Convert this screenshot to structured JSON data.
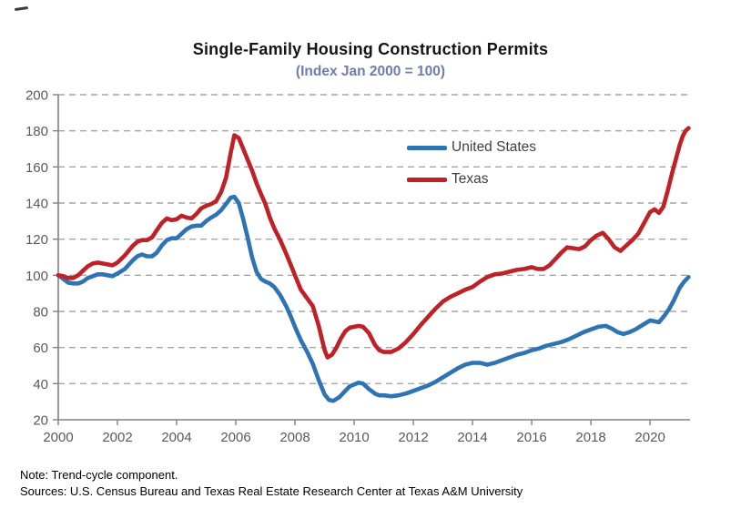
{
  "notes": {
    "note": "Note: Trend-cycle component.",
    "sources": "Sources: U.S. Census Bureau and Texas Real Estate Research Center at Texas A&M University"
  },
  "chart_data": {
    "type": "line",
    "title": "Single-Family Housing Construction Permits",
    "subtitle": "(Index Jan 2000 = 100)",
    "xlabel": "",
    "ylabel": "",
    "xlim": [
      2000,
      2021.35
    ],
    "ylim": [
      20,
      200
    ],
    "xticks": [
      2000,
      2002,
      2004,
      2006,
      2008,
      2010,
      2012,
      2014,
      2016,
      2018,
      2020
    ],
    "yticks": [
      20,
      40,
      60,
      80,
      100,
      120,
      140,
      160,
      180,
      200
    ],
    "grid": "dashed-horizontal",
    "legend_position": "inside-upper-middle",
    "colors": {
      "axis": "#808080",
      "grid": "#a6a6a6",
      "tick_label": "#595959",
      "subtitle": "#6e7cb0",
      "title": "#141414"
    },
    "series": [
      {
        "name": "United States",
        "color": "#2e74b5",
        "points": [
          [
            2000.0,
            100
          ],
          [
            2000.17,
            98
          ],
          [
            2000.33,
            96
          ],
          [
            2000.5,
            95.5
          ],
          [
            2000.67,
            95.5
          ],
          [
            2000.83,
            96.5
          ],
          [
            2001.0,
            98.5
          ],
          [
            2001.17,
            99.5
          ],
          [
            2001.33,
            100.5
          ],
          [
            2001.5,
            100.5
          ],
          [
            2001.67,
            100
          ],
          [
            2001.83,
            99.5
          ],
          [
            2002.0,
            101
          ],
          [
            2002.25,
            103.5
          ],
          [
            2002.5,
            108
          ],
          [
            2002.67,
            110.5
          ],
          [
            2002.83,
            111.5
          ],
          [
            2003.0,
            110.5
          ],
          [
            2003.17,
            110.5
          ],
          [
            2003.33,
            112.5
          ],
          [
            2003.5,
            116.5
          ],
          [
            2003.67,
            119.5
          ],
          [
            2003.83,
            120.5
          ],
          [
            2004.0,
            120.5
          ],
          [
            2004.17,
            123
          ],
          [
            2004.33,
            125.5
          ],
          [
            2004.5,
            127
          ],
          [
            2004.67,
            127.5
          ],
          [
            2004.83,
            127.5
          ],
          [
            2005.0,
            130
          ],
          [
            2005.17,
            132
          ],
          [
            2005.33,
            133.5
          ],
          [
            2005.5,
            136
          ],
          [
            2005.67,
            139.5
          ],
          [
            2005.83,
            143
          ],
          [
            2005.95,
            143.5
          ],
          [
            2006.1,
            140
          ],
          [
            2006.25,
            131
          ],
          [
            2006.4,
            121
          ],
          [
            2006.55,
            110
          ],
          [
            2006.7,
            102
          ],
          [
            2006.85,
            98
          ],
          [
            2007.0,
            96.5
          ],
          [
            2007.15,
            95.5
          ],
          [
            2007.3,
            93.5
          ],
          [
            2007.5,
            89
          ],
          [
            2007.7,
            83
          ],
          [
            2007.85,
            77.5
          ],
          [
            2008.0,
            71.5
          ],
          [
            2008.2,
            64
          ],
          [
            2008.4,
            58
          ],
          [
            2008.6,
            51
          ],
          [
            2008.8,
            42
          ],
          [
            2009.0,
            34
          ],
          [
            2009.15,
            31
          ],
          [
            2009.3,
            30.5
          ],
          [
            2009.5,
            32.5
          ],
          [
            2009.7,
            36
          ],
          [
            2009.85,
            38.5
          ],
          [
            2010.0,
            39.5
          ],
          [
            2010.15,
            40.5
          ],
          [
            2010.3,
            40
          ],
          [
            2010.5,
            37
          ],
          [
            2010.7,
            34.5
          ],
          [
            2010.85,
            33.5
          ],
          [
            2011.0,
            33.5
          ],
          [
            2011.25,
            33
          ],
          [
            2011.5,
            33.5
          ],
          [
            2011.75,
            34.5
          ],
          [
            2012.0,
            36
          ],
          [
            2012.25,
            37.5
          ],
          [
            2012.5,
            39
          ],
          [
            2012.75,
            41
          ],
          [
            2013.0,
            43.5
          ],
          [
            2013.25,
            46
          ],
          [
            2013.5,
            48.5
          ],
          [
            2013.75,
            50.5
          ],
          [
            2014.0,
            51.5
          ],
          [
            2014.25,
            51.5
          ],
          [
            2014.5,
            50.5
          ],
          [
            2014.75,
            51.5
          ],
          [
            2015.0,
            53
          ],
          [
            2015.25,
            54.5
          ],
          [
            2015.5,
            56
          ],
          [
            2015.75,
            57
          ],
          [
            2016.0,
            58.5
          ],
          [
            2016.25,
            59.5
          ],
          [
            2016.5,
            61
          ],
          [
            2016.75,
            62
          ],
          [
            2017.0,
            63
          ],
          [
            2017.25,
            64.5
          ],
          [
            2017.5,
            66.5
          ],
          [
            2017.75,
            68.5
          ],
          [
            2018.0,
            70
          ],
          [
            2018.25,
            71.5
          ],
          [
            2018.5,
            72
          ],
          [
            2018.7,
            70.5
          ],
          [
            2018.9,
            68.5
          ],
          [
            2019.1,
            67.5
          ],
          [
            2019.3,
            68.5
          ],
          [
            2019.5,
            70
          ],
          [
            2019.75,
            72.5
          ],
          [
            2020.0,
            75
          ],
          [
            2020.15,
            74.5
          ],
          [
            2020.3,
            74
          ],
          [
            2020.5,
            78
          ],
          [
            2020.65,
            81.5
          ],
          [
            2020.8,
            86
          ],
          [
            2021.0,
            93
          ],
          [
            2021.15,
            96.5
          ],
          [
            2021.3,
            99
          ]
        ]
      },
      {
        "name": "Texas",
        "color": "#be2126",
        "points": [
          [
            2000.0,
            100
          ],
          [
            2000.17,
            99.5
          ],
          [
            2000.33,
            98.5
          ],
          [
            2000.5,
            98.5
          ],
          [
            2000.67,
            100
          ],
          [
            2000.83,
            102.5
          ],
          [
            2001.0,
            105
          ],
          [
            2001.17,
            106.5
          ],
          [
            2001.33,
            107
          ],
          [
            2001.5,
            106.5
          ],
          [
            2001.67,
            106
          ],
          [
            2001.83,
            105.5
          ],
          [
            2002.0,
            107
          ],
          [
            2002.25,
            111
          ],
          [
            2002.5,
            116
          ],
          [
            2002.67,
            118.5
          ],
          [
            2002.83,
            119.5
          ],
          [
            2003.0,
            119.5
          ],
          [
            2003.17,
            121
          ],
          [
            2003.33,
            125
          ],
          [
            2003.5,
            129
          ],
          [
            2003.67,
            131.5
          ],
          [
            2003.83,
            130.5
          ],
          [
            2004.0,
            131
          ],
          [
            2004.17,
            133
          ],
          [
            2004.33,
            132
          ],
          [
            2004.5,
            131.5
          ],
          [
            2004.67,
            134
          ],
          [
            2004.83,
            137
          ],
          [
            2005.0,
            138.5
          ],
          [
            2005.17,
            139.5
          ],
          [
            2005.33,
            141
          ],
          [
            2005.5,
            146
          ],
          [
            2005.67,
            154
          ],
          [
            2005.83,
            168
          ],
          [
            2005.95,
            177.5
          ],
          [
            2006.1,
            176
          ],
          [
            2006.25,
            170
          ],
          [
            2006.4,
            164
          ],
          [
            2006.55,
            158
          ],
          [
            2006.7,
            151
          ],
          [
            2006.85,
            145
          ],
          [
            2007.0,
            139.5
          ],
          [
            2007.15,
            132
          ],
          [
            2007.3,
            126
          ],
          [
            2007.5,
            119.5
          ],
          [
            2007.7,
            112
          ],
          [
            2007.85,
            106
          ],
          [
            2008.0,
            100
          ],
          [
            2008.2,
            92
          ],
          [
            2008.4,
            87.5
          ],
          [
            2008.6,
            83
          ],
          [
            2008.8,
            72
          ],
          [
            2009.0,
            58.5
          ],
          [
            2009.1,
            54.5
          ],
          [
            2009.25,
            56
          ],
          [
            2009.4,
            60
          ],
          [
            2009.55,
            65
          ],
          [
            2009.7,
            69
          ],
          [
            2009.85,
            71
          ],
          [
            2010.0,
            71.5
          ],
          [
            2010.15,
            72
          ],
          [
            2010.3,
            71.5
          ],
          [
            2010.5,
            68
          ],
          [
            2010.7,
            61.5
          ],
          [
            2010.85,
            58.5
          ],
          [
            2011.0,
            57.5
          ],
          [
            2011.25,
            57.5
          ],
          [
            2011.5,
            59.5
          ],
          [
            2011.75,
            63
          ],
          [
            2012.0,
            67.5
          ],
          [
            2012.25,
            72.5
          ],
          [
            2012.5,
            77
          ],
          [
            2012.75,
            81.5
          ],
          [
            2013.0,
            85.5
          ],
          [
            2013.25,
            88
          ],
          [
            2013.5,
            90
          ],
          [
            2013.75,
            92
          ],
          [
            2014.0,
            93.5
          ],
          [
            2014.25,
            96.5
          ],
          [
            2014.5,
            99
          ],
          [
            2014.75,
            100.5
          ],
          [
            2015.0,
            101
          ],
          [
            2015.25,
            102
          ],
          [
            2015.5,
            103
          ],
          [
            2015.75,
            103.5
          ],
          [
            2016.0,
            104.5
          ],
          [
            2016.2,
            103.5
          ],
          [
            2016.4,
            103.5
          ],
          [
            2016.6,
            105.5
          ],
          [
            2016.8,
            109
          ],
          [
            2017.0,
            112.5
          ],
          [
            2017.2,
            115.5
          ],
          [
            2017.4,
            115
          ],
          [
            2017.6,
            114.5
          ],
          [
            2017.8,
            116
          ],
          [
            2018.0,
            119.5
          ],
          [
            2018.2,
            122
          ],
          [
            2018.4,
            123.5
          ],
          [
            2018.6,
            120
          ],
          [
            2018.8,
            115.5
          ],
          [
            2019.0,
            113.5
          ],
          [
            2019.2,
            116.5
          ],
          [
            2019.4,
            119.5
          ],
          [
            2019.6,
            123
          ],
          [
            2019.8,
            129
          ],
          [
            2020.0,
            135
          ],
          [
            2020.15,
            136.5
          ],
          [
            2020.3,
            134.5
          ],
          [
            2020.45,
            138
          ],
          [
            2020.6,
            147
          ],
          [
            2020.75,
            157
          ],
          [
            2020.9,
            166
          ],
          [
            2021.0,
            172
          ],
          [
            2021.1,
            177
          ],
          [
            2021.2,
            180
          ],
          [
            2021.3,
            181.5
          ]
        ]
      }
    ]
  }
}
